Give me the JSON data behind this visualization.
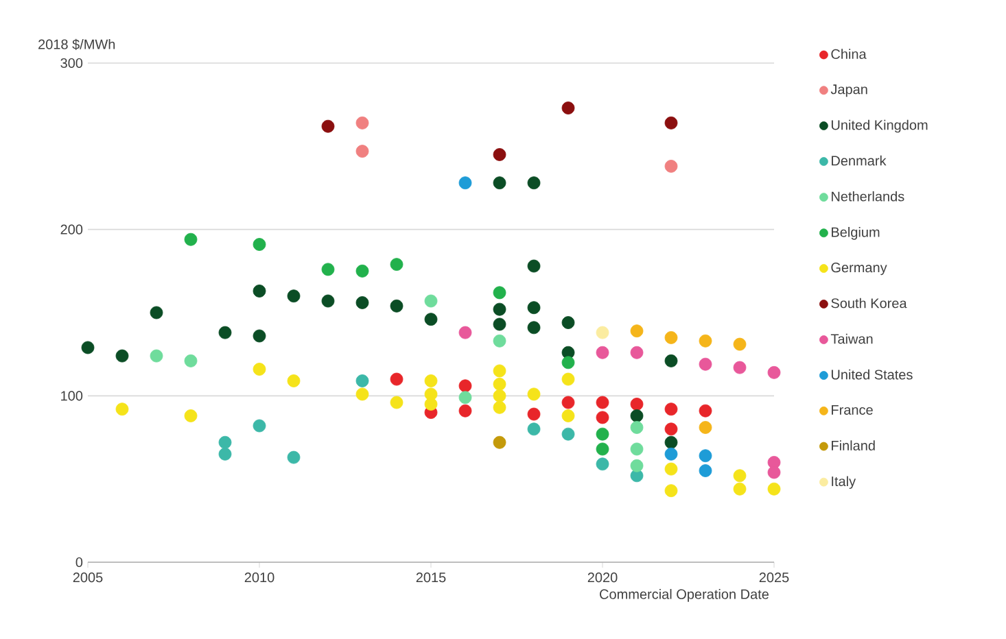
{
  "chart_data": {
    "type": "scatter",
    "ylabel": "2018 $/MWh",
    "xlabel": "Commercial Operation Date",
    "xlim": [
      2005,
      2025
    ],
    "xticks": [
      2005,
      2010,
      2015,
      2020,
      2025
    ],
    "ylim": [
      0,
      300
    ],
    "yticks": [
      0,
      100,
      200,
      300
    ],
    "grid": "y",
    "legend": "right",
    "marker": "circle",
    "series": [
      {
        "name": "China",
        "color": "#e8262a",
        "x": [
          2014,
          2015,
          2016,
          2016,
          2017,
          2018,
          2019,
          2020,
          2020,
          2021,
          2022,
          2022,
          2023
        ],
        "values": [
          110,
          90,
          106,
          91,
          null,
          89,
          96,
          96,
          87,
          95,
          92,
          80,
          91
        ]
      },
      {
        "name": "Japan",
        "color": "#f08080",
        "x": [
          2013,
          2013,
          2022
        ],
        "values": [
          264,
          247,
          238
        ]
      },
      {
        "name": "United Kingdom",
        "color": "#0b4d25",
        "x": [
          2005,
          2006,
          2007,
          2009,
          2010,
          2010,
          2011,
          2012,
          2013,
          2014,
          2015,
          2017,
          2017,
          2017,
          2018,
          2018,
          2018,
          2018,
          2019,
          2019,
          2021,
          2022,
          2022
        ],
        "values": [
          129,
          124,
          150,
          138,
          163,
          136,
          160,
          157,
          156,
          154,
          146,
          228,
          152,
          143,
          228,
          178,
          153,
          141,
          144,
          126,
          88,
          121,
          72
        ]
      },
      {
        "name": "Denmark",
        "color": "#3cb8a8",
        "x": [
          2009,
          2009,
          2010,
          2011,
          2013,
          2018,
          2019,
          2020,
          2021
        ],
        "values": [
          72,
          65,
          82,
          63,
          109,
          80,
          77,
          59,
          52
        ]
      },
      {
        "name": "Netherlands",
        "color": "#6fdc9c",
        "x": [
          2007,
          2008,
          2015,
          2016,
          2017,
          2021,
          2021,
          2021
        ],
        "values": [
          124,
          121,
          157,
          99,
          133,
          81,
          68,
          58
        ]
      },
      {
        "name": "Belgium",
        "color": "#22b14c",
        "x": [
          2008,
          2010,
          2012,
          2013,
          2014,
          2017,
          2019,
          2020,
          2020
        ],
        "values": [
          194,
          191,
          176,
          175,
          179,
          162,
          120,
          77,
          68
        ]
      },
      {
        "name": "Germany",
        "color": "#f5e31a",
        "x": [
          2006,
          2008,
          2010,
          2011,
          2013,
          2014,
          2015,
          2015,
          2015,
          2017,
          2017,
          2017,
          2017,
          2018,
          2019,
          2019,
          2022,
          2022,
          2024,
          2024,
          2025
        ],
        "values": [
          92,
          88,
          116,
          109,
          101,
          96,
          109,
          101,
          95,
          115,
          107,
          100,
          93,
          101,
          110,
          88,
          56,
          43,
          52,
          44,
          44
        ]
      },
      {
        "name": "South Korea",
        "color": "#8b0f0f",
        "x": [
          2012,
          2017,
          2019,
          2022
        ],
        "values": [
          262,
          245,
          273,
          264
        ]
      },
      {
        "name": "Taiwan",
        "color": "#e8589a",
        "x": [
          2016,
          2020,
          2021,
          2023,
          2024,
          2025,
          2025,
          2025
        ],
        "values": [
          138,
          126,
          126,
          119,
          117,
          114,
          60,
          54
        ]
      },
      {
        "name": "United States",
        "color": "#1e9cd7",
        "x": [
          2016,
          2022,
          2023,
          2023
        ],
        "values": [
          228,
          65,
          64,
          55
        ]
      },
      {
        "name": "France",
        "color": "#f5b51a",
        "x": [
          2021,
          2022,
          2023,
          2023,
          2024
        ],
        "values": [
          139,
          135,
          133,
          81,
          131
        ]
      },
      {
        "name": "Finland",
        "color": "#c49a0a",
        "x": [
          2017
        ],
        "values": [
          72
        ]
      },
      {
        "name": "Italy",
        "color": "#fbeca0",
        "x": [
          2020
        ],
        "values": [
          138
        ]
      }
    ]
  }
}
